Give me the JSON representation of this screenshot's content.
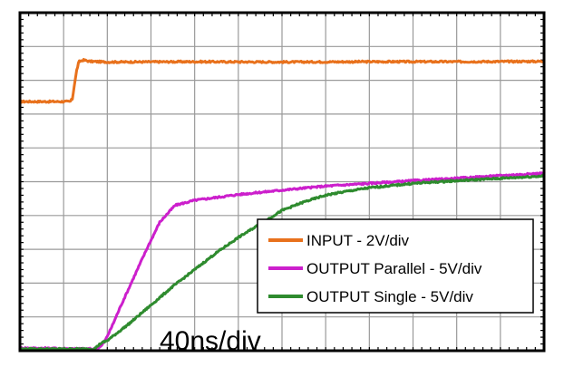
{
  "chart_data": {
    "type": "line",
    "title": "",
    "xlabel": "40ns/div",
    "ylabel": "",
    "x_divisions": 12,
    "y_divisions": 10,
    "x_unit": "div",
    "y_unit": "div",
    "grid": true,
    "legend_position": "bottom-right",
    "series": [
      {
        "name": "INPUT - 2V/div",
        "color": "#e8711c",
        "points": [
          [
            0,
            7.37
          ],
          [
            1.15,
            7.37
          ],
          [
            1.2,
            7.45
          ],
          [
            1.25,
            7.9
          ],
          [
            1.3,
            8.3
          ],
          [
            1.35,
            8.55
          ],
          [
            1.45,
            8.6
          ],
          [
            1.6,
            8.56
          ],
          [
            2,
            8.54
          ],
          [
            4,
            8.55
          ],
          [
            6,
            8.54
          ],
          [
            8,
            8.55
          ],
          [
            10,
            8.55
          ],
          [
            12,
            8.56
          ]
        ]
      },
      {
        "name": "OUTPUT Parallel - 5V/div",
        "color": "#cc1fcc",
        "points": [
          [
            0,
            0.08
          ],
          [
            1.7,
            0.05
          ],
          [
            1.85,
            0.12
          ],
          [
            1.95,
            0.3
          ],
          [
            2.1,
            0.7
          ],
          [
            2.3,
            1.3
          ],
          [
            2.6,
            2.15
          ],
          [
            2.9,
            3.0
          ],
          [
            3.2,
            3.8
          ],
          [
            3.55,
            4.3
          ],
          [
            4,
            4.45
          ],
          [
            5,
            4.62
          ],
          [
            6,
            4.75
          ],
          [
            7,
            4.87
          ],
          [
            8,
            4.95
          ],
          [
            9,
            5.03
          ],
          [
            10,
            5.1
          ],
          [
            11,
            5.18
          ],
          [
            12,
            5.25
          ]
        ]
      },
      {
        "name": "OUTPUT Single - 5V/div",
        "color": "#2e8b2e",
        "points": [
          [
            0,
            0.05
          ],
          [
            1.7,
            0.05
          ],
          [
            1.85,
            0.22
          ],
          [
            2,
            0.3
          ],
          [
            2.5,
            0.8
          ],
          [
            3,
            1.35
          ],
          [
            3.5,
            1.9
          ],
          [
            4,
            2.4
          ],
          [
            4.5,
            2.9
          ],
          [
            5,
            3.35
          ],
          [
            5.5,
            3.75
          ],
          [
            6,
            4.15
          ],
          [
            6.5,
            4.4
          ],
          [
            7,
            4.6
          ],
          [
            7.5,
            4.72
          ],
          [
            8,
            4.82
          ],
          [
            9,
            4.95
          ],
          [
            10,
            5.03
          ],
          [
            11,
            5.1
          ],
          [
            12,
            5.17
          ]
        ]
      }
    ]
  },
  "legend": {
    "items": [
      {
        "label": "INPUT - 2V/div",
        "color": "#e8711c"
      },
      {
        "label": "OUTPUT Parallel - 5V/div",
        "color": "#cc1fcc"
      },
      {
        "label": "OUTPUT Single - 5V/div",
        "color": "#2e8b2e"
      }
    ]
  },
  "timebase": "40ns/div"
}
